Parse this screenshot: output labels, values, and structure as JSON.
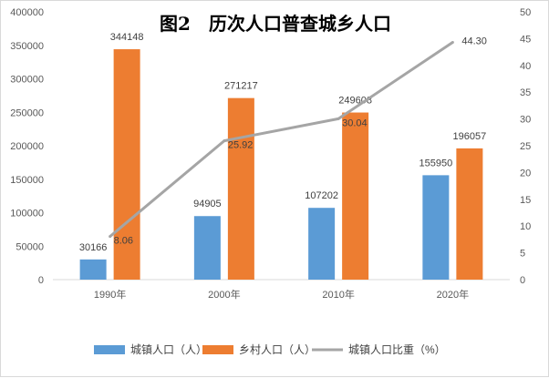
{
  "chart_data": {
    "type": "bar",
    "title": "图2　历次人口普查城乡人口",
    "categories": [
      "1990年",
      "2000年",
      "2010年",
      "2020年"
    ],
    "y_left": {
      "min": 0,
      "max": 400000,
      "step": 50000
    },
    "y_right": {
      "min": 0,
      "max": 50,
      "step": 5
    },
    "series": [
      {
        "name": "城镇人口（人）",
        "kind": "bar",
        "axis": "left",
        "color": "#5b9bd5",
        "values": [
          30166,
          94905,
          107202,
          155950
        ]
      },
      {
        "name": "乡村人口（人）",
        "kind": "bar",
        "axis": "left",
        "color": "#ed7d31",
        "values": [
          344148,
          271217,
          249608,
          196057
        ]
      },
      {
        "name": "城镇人口比重（%）",
        "kind": "line",
        "axis": "right",
        "color": "#a5a5a5",
        "values": [
          8.06,
          25.92,
          30.04,
          44.3
        ],
        "labels": [
          "8.06",
          "25.92",
          "30.04",
          "44.30"
        ]
      }
    ],
    "legend_position": "bottom",
    "grid": false
  }
}
